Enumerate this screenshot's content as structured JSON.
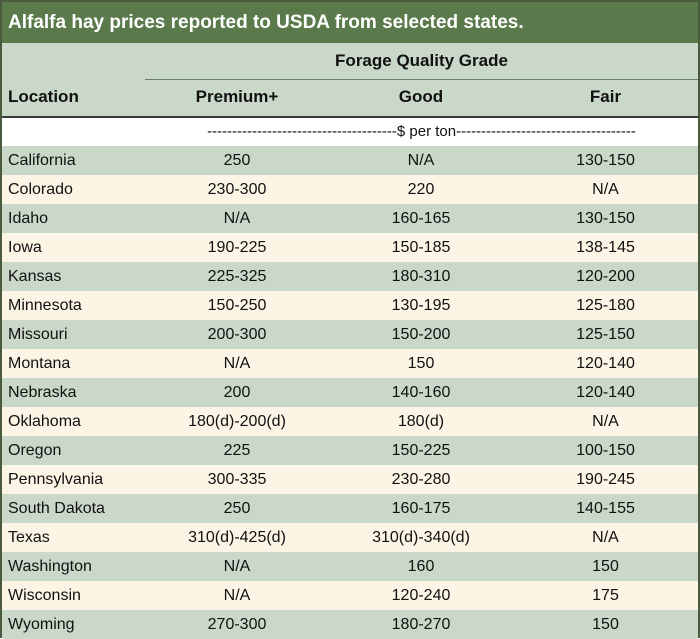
{
  "title": "Alfalfa hay prices reported to USDA from selected states.",
  "header": {
    "grade_title": "Forage Quality Grade",
    "location": "Location",
    "columns": [
      "Premium+",
      "Good",
      "Fair"
    ]
  },
  "unit_row": "--------------------------------------$ per ton------------------------------------",
  "colors": {
    "title_bar": "#5b7a4b",
    "band_green": "#c9d8c8",
    "band_cream": "#fcf5e5"
  },
  "rows": [
    {
      "location": "California",
      "premium": "250",
      "good": "N/A",
      "fair": "130-150"
    },
    {
      "location": "Colorado",
      "premium": "230-300",
      "good": "220",
      "fair": "N/A"
    },
    {
      "location": "Idaho",
      "premium": "N/A",
      "good": "160-165",
      "fair": "130-150"
    },
    {
      "location": "Iowa",
      "premium": "190-225",
      "good": "150-185",
      "fair": "138-145"
    },
    {
      "location": "Kansas",
      "premium": "225-325",
      "good": "180-310",
      "fair": "120-200"
    },
    {
      "location": "Minnesota",
      "premium": "150-250",
      "good": "130-195",
      "fair": "125-180"
    },
    {
      "location": "Missouri",
      "premium": "200-300",
      "good": "150-200",
      "fair": "125-150"
    },
    {
      "location": "Montana",
      "premium": "N/A",
      "good": "150",
      "fair": "120-140"
    },
    {
      "location": "Nebraska",
      "premium": "200",
      "good": "140-160",
      "fair": "120-140"
    },
    {
      "location": "Oklahoma",
      "premium": "180(d)-200(d)",
      "good": "180(d)",
      "fair": "N/A"
    },
    {
      "location": "Oregon",
      "premium": "225",
      "good": "150-225",
      "fair": "100-150"
    },
    {
      "location": "Pennsylvania",
      "premium": "300-335",
      "good": "230-280",
      "fair": "190-245"
    },
    {
      "location": "South Dakota",
      "premium": "250",
      "good": "160-175",
      "fair": "140-155"
    },
    {
      "location": "Texas",
      "premium": "310(d)-425(d)",
      "good": "310(d)-340(d)",
      "fair": "N/A"
    },
    {
      "location": "Washington",
      "premium": "N/A",
      "good": "160",
      "fair": "150"
    },
    {
      "location": "Wisconsin",
      "premium": "N/A",
      "good": "120-240",
      "fair": "175"
    },
    {
      "location": "Wyoming",
      "premium": "270-300",
      "good": "180-270",
      "fair": "150"
    }
  ]
}
